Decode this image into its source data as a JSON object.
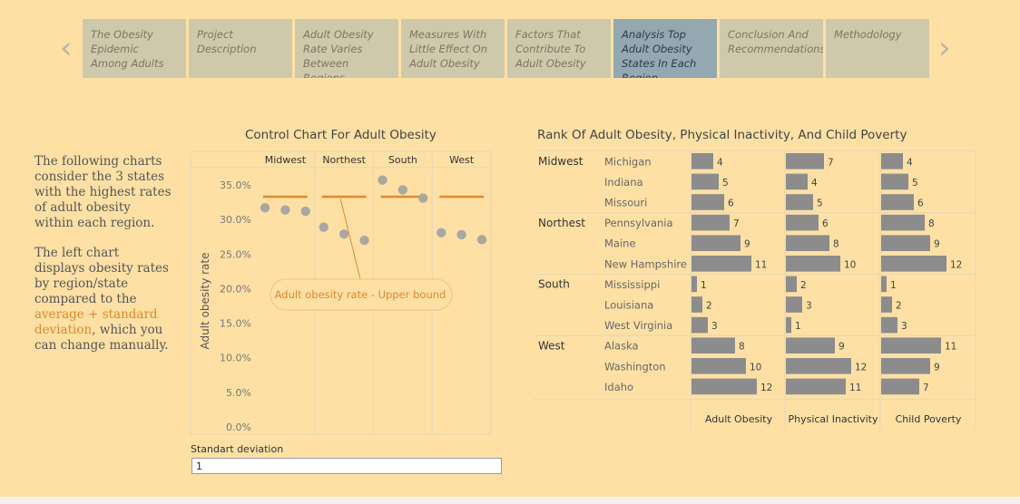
{
  "nav": {
    "prev_label": "‹",
    "next_label": "›",
    "tabs": [
      {
        "label": "The Obesity Epidemic Among Adults",
        "active": false
      },
      {
        "label": "Project Description",
        "active": false
      },
      {
        "label": "Adult Obesity Rate Varies Between Regions",
        "active": false
      },
      {
        "label": "Measures With Little Effect On Adult Obesity",
        "active": false
      },
      {
        "label": "Factors That Contribute To Adult Obesity",
        "active": false
      },
      {
        "label": "Analysis Top Adult Obesity States In Each Region",
        "active": true
      },
      {
        "label": "Conclusion And Recommendations",
        "active": false
      },
      {
        "label": "Methodology",
        "active": false
      }
    ]
  },
  "intro": {
    "p1": "The following charts consider the 3 states with the highest rates of adult obesity within each region.",
    "p2_before": "The left chart displays obesity rates by region/state compared to the ",
    "p2_accent": "average + standard deviation",
    "p2_after": ", which you can change manually."
  },
  "controls": {
    "sd_label": "Standart deviation",
    "sd_value": "1"
  },
  "colors": {
    "background": "#FEE0A5",
    "point": "#A9A7A1",
    "bound_line": "#E0892A",
    "bar": "#8C8C8C",
    "grid": "#E4D6B4"
  },
  "chart_data": [
    {
      "type": "scatter",
      "title": "Control Chart For Adult Obesity",
      "ylabel": "Adult obesity rate",
      "ylim": [
        0,
        0.375
      ],
      "yticks": [
        {
          "v": 0.0,
          "label": "0.0%"
        },
        {
          "v": 0.05,
          "label": "5.0%"
        },
        {
          "v": 0.1,
          "label": "10.0%"
        },
        {
          "v": 0.15,
          "label": "15.0%"
        },
        {
          "v": 0.2,
          "label": "20.0%"
        },
        {
          "v": 0.25,
          "label": "25.0%"
        },
        {
          "v": 0.3,
          "label": "30.0%"
        },
        {
          "v": 0.35,
          "label": "35.0%"
        }
      ],
      "annotation": "Adult obesity rate - Upper bound",
      "regions": [
        {
          "name": "Midwest",
          "upper_bound": 0.333,
          "values": [
            0.317,
            0.314,
            0.312
          ]
        },
        {
          "name": "Northest",
          "upper_bound": 0.333,
          "values": [
            0.289,
            0.279,
            0.27
          ]
        },
        {
          "name": "South",
          "upper_bound": 0.333,
          "values": [
            0.357,
            0.343,
            0.331
          ]
        },
        {
          "name": "West",
          "upper_bound": 0.333,
          "values": [
            0.281,
            0.278,
            0.271
          ]
        }
      ]
    },
    {
      "type": "bar",
      "title": "Rank Of Adult Obesity, Physical Inactivity, And Child Poverty",
      "measures": [
        "Adult Obesity",
        "Physical Inactivity",
        "Child Poverty"
      ],
      "max_rank": 12,
      "groups": [
        {
          "region": "Midwest",
          "rows": [
            {
              "state": "Michigan",
              "ranks": [
                4,
                7,
                4
              ]
            },
            {
              "state": "Indiana",
              "ranks": [
                5,
                4,
                5
              ]
            },
            {
              "state": "Missouri",
              "ranks": [
                6,
                5,
                6
              ]
            }
          ]
        },
        {
          "region": "Northest",
          "rows": [
            {
              "state": "Pennsylvania",
              "ranks": [
                7,
                6,
                8
              ]
            },
            {
              "state": "Maine",
              "ranks": [
                9,
                8,
                9
              ]
            },
            {
              "state": "New Hampshire",
              "ranks": [
                11,
                10,
                12
              ]
            }
          ]
        },
        {
          "region": "South",
          "rows": [
            {
              "state": "Mississippi",
              "ranks": [
                1,
                2,
                1
              ]
            },
            {
              "state": "Louisiana",
              "ranks": [
                2,
                3,
                2
              ]
            },
            {
              "state": "West Virginia",
              "ranks": [
                3,
                1,
                3
              ]
            }
          ]
        },
        {
          "region": "West",
          "rows": [
            {
              "state": "Alaska",
              "ranks": [
                8,
                9,
                11
              ]
            },
            {
              "state": "Washington",
              "ranks": [
                10,
                12,
                9
              ]
            },
            {
              "state": "Idaho",
              "ranks": [
                12,
                11,
                7
              ]
            }
          ]
        }
      ]
    }
  ]
}
